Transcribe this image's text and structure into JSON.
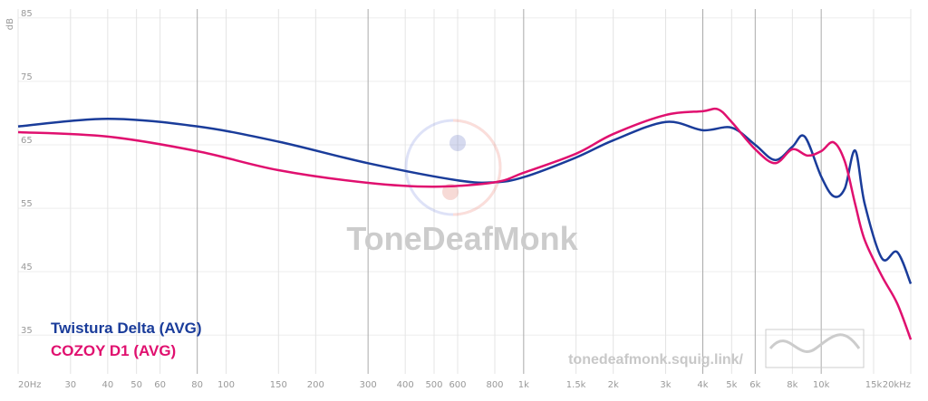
{
  "chart_data": {
    "type": "line",
    "y_label": "dB",
    "watermark": "ToneDeafMonk",
    "url": "tonedeafmonk.squig.link/",
    "log_x": true,
    "grid": true,
    "xlim": [
      20,
      20000
    ],
    "ylim": [
      28.9,
      86.4
    ],
    "xticks": [
      {
        "value": 20,
        "label": "20Hz"
      },
      30,
      40,
      50,
      60,
      {
        "value": 80,
        "label": "80",
        "major": true
      },
      100,
      150,
      200,
      {
        "value": 300,
        "label": "300",
        "major": true
      },
      400,
      500,
      600,
      800,
      {
        "value": 1000,
        "label": "1k",
        "major": true
      },
      {
        "value": 1500,
        "label": "1.5k"
      },
      {
        "value": 2000,
        "label": "2k"
      },
      {
        "value": 3000,
        "label": "3k"
      },
      {
        "value": 4000,
        "label": "4k",
        "major": true
      },
      {
        "value": 5000,
        "label": "5k"
      },
      {
        "value": 6000,
        "label": "6k",
        "major": true
      },
      {
        "value": 8000,
        "label": "8k"
      },
      {
        "value": 10000,
        "label": "10k",
        "major": true
      },
      {
        "value": 15000,
        "label": "15k"
      },
      {
        "value": 20000,
        "label": "20kHz"
      }
    ],
    "yticks": [
      35,
      45,
      55,
      65,
      75,
      85
    ],
    "series": [
      {
        "name": "Twistura Delta (AVG)",
        "color": "#1a3c9a",
        "x": [
          20,
          40,
          80,
          150,
          300,
          600,
          800,
          1000,
          1500,
          2000,
          3000,
          4000,
          5000,
          6000,
          7000,
          8000,
          8800,
          10000,
          11000,
          12000,
          13000,
          14000,
          16000,
          18000,
          20000
        ],
        "values": [
          67.9,
          69.1,
          67.9,
          65.5,
          62.1,
          59.4,
          59.1,
          59.9,
          63,
          65.7,
          68.6,
          67.3,
          67.7,
          65,
          62.6,
          64.7,
          66.3,
          60,
          56.9,
          58.1,
          64.1,
          55.7,
          47.1,
          48.1,
          43.1
        ]
      },
      {
        "name": "COZOY D1 (AVG)",
        "color": "#e0106f",
        "x": [
          20,
          40,
          80,
          150,
          300,
          500,
          800,
          1000,
          1500,
          2000,
          3000,
          4000,
          4500,
          5000,
          6000,
          7000,
          8000,
          9000,
          10000,
          11000,
          12000,
          13000,
          14000,
          16000,
          18000,
          20000
        ],
        "values": [
          67,
          66.3,
          64,
          61,
          59,
          58.4,
          59.1,
          60.6,
          63.6,
          66.7,
          69.7,
          70.3,
          70.6,
          68.6,
          64.3,
          62.1,
          64.3,
          63.3,
          64,
          65.4,
          62.4,
          55.7,
          50,
          44.3,
          40,
          34.3
        ]
      }
    ]
  }
}
